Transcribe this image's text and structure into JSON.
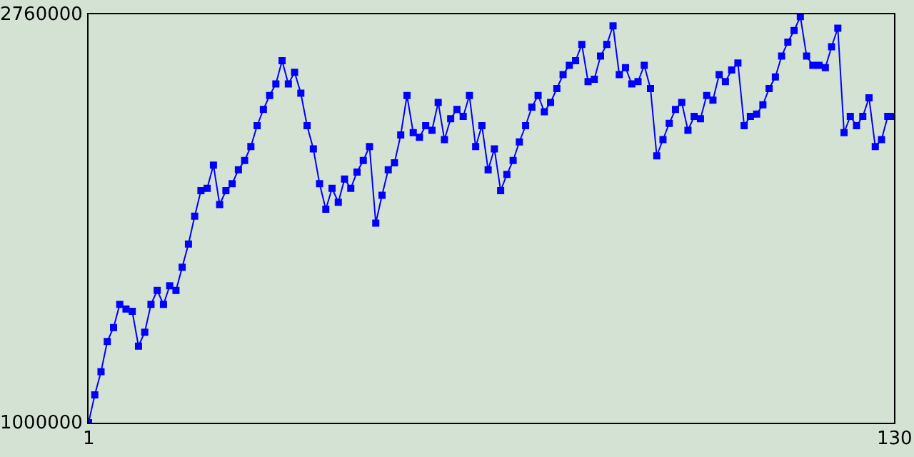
{
  "chart_data": {
    "type": "line",
    "marker": "square",
    "line_style": "solid",
    "xlim": [
      1,
      130
    ],
    "ylim": [
      1000000,
      2760000
    ],
    "xticks": [
      1,
      130
    ],
    "yticks": [
      1000000,
      2760000
    ],
    "x": [
      1,
      2,
      3,
      4,
      5,
      6,
      7,
      8,
      9,
      10,
      11,
      12,
      13,
      14,
      15,
      16,
      17,
      18,
      19,
      20,
      21,
      22,
      23,
      24,
      25,
      26,
      27,
      28,
      29,
      30,
      31,
      32,
      33,
      34,
      35,
      36,
      37,
      38,
      39,
      40,
      41,
      42,
      43,
      44,
      45,
      46,
      47,
      48,
      49,
      50,
      51,
      52,
      53,
      54,
      55,
      56,
      57,
      58,
      59,
      60,
      61,
      62,
      63,
      64,
      65,
      66,
      67,
      68,
      69,
      70,
      71,
      72,
      73,
      74,
      75,
      76,
      77,
      78,
      79,
      80,
      81,
      82,
      83,
      84,
      85,
      86,
      87,
      88,
      89,
      90,
      91,
      92,
      93,
      94,
      95,
      96,
      97,
      98,
      99,
      100,
      101,
      102,
      103,
      104,
      105,
      106,
      107,
      108,
      109,
      110,
      111,
      112,
      113,
      114,
      115,
      116,
      117,
      118,
      119,
      120,
      121,
      122,
      123,
      124,
      125,
      126,
      127,
      128,
      129,
      130
    ],
    "series": [
      {
        "color": "#0000ff",
        "values": [
          1000000,
          1120000,
          1220000,
          1350000,
          1410000,
          1510000,
          1490000,
          1480000,
          1330000,
          1390000,
          1510000,
          1570000,
          1510000,
          1590000,
          1570000,
          1670000,
          1770000,
          1890000,
          2000000,
          2010000,
          2110000,
          1940000,
          2000000,
          2030000,
          2090000,
          2130000,
          2190000,
          2280000,
          2350000,
          2410000,
          2460000,
          2560000,
          2460000,
          2510000,
          2420000,
          2280000,
          2180000,
          2030000,
          1920000,
          2010000,
          1950000,
          2050000,
          2010000,
          2080000,
          2130000,
          2190000,
          1860000,
          1980000,
          2090000,
          2120000,
          2240000,
          2410000,
          2250000,
          2230000,
          2280000,
          2260000,
          2380000,
          2220000,
          2310000,
          2350000,
          2320000,
          2410000,
          2190000,
          2280000,
          2090000,
          2180000,
          2000000,
          2070000,
          2130000,
          2210000,
          2280000,
          2360000,
          2410000,
          2340000,
          2380000,
          2440000,
          2500000,
          2540000,
          2560000,
          2630000,
          2470000,
          2480000,
          2580000,
          2630000,
          2710000,
          2500000,
          2530000,
          2460000,
          2470000,
          2540000,
          2440000,
          2150000,
          2220000,
          2290000,
          2350000,
          2380000,
          2260000,
          2320000,
          2310000,
          2410000,
          2390000,
          2500000,
          2470000,
          2520000,
          2550000,
          2280000,
          2320000,
          2330000,
          2370000,
          2440000,
          2490000,
          2580000,
          2640000,
          2690000,
          2750000,
          2580000,
          2540000,
          2540000,
          2530000,
          2620000,
          2700000,
          2250000,
          2320000,
          2280000,
          2320000,
          2400000,
          2190000,
          2220000,
          2320000,
          2320000
        ]
      }
    ]
  }
}
